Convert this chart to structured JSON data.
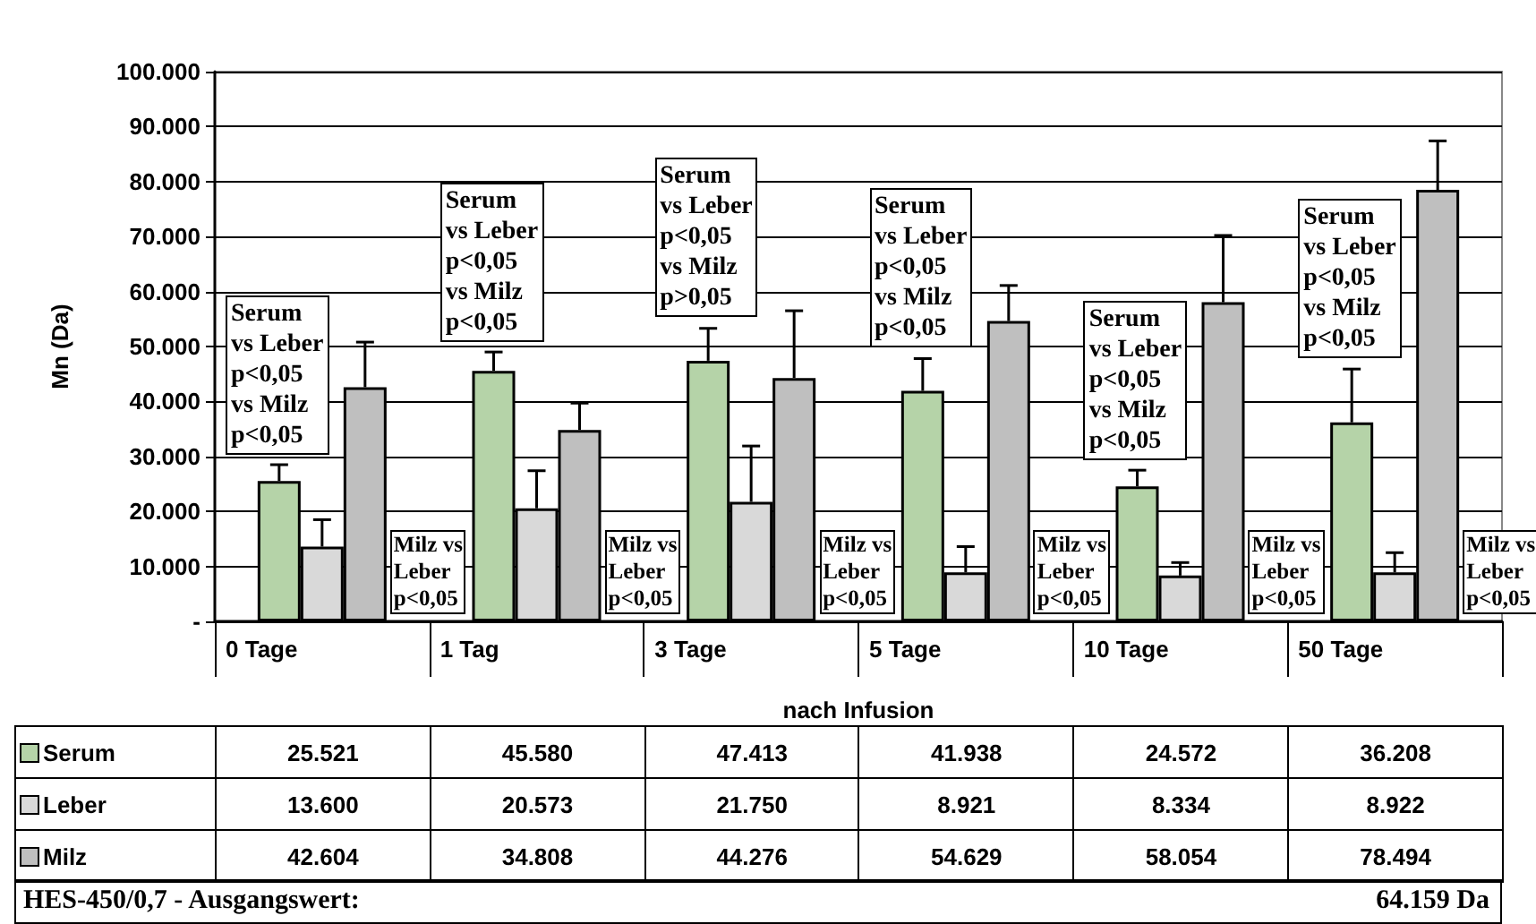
{
  "chart_data": {
    "type": "bar",
    "ylabel": "Mn (Da)",
    "xlabel": "nach Infusion",
    "categories": [
      "0 Tage",
      "1 Tag",
      "3 Tage",
      "5 Tage",
      "10 Tage",
      "50 Tage"
    ],
    "series": [
      {
        "name": "Serum",
        "color": "#b5d3a8",
        "values": [
          25521,
          45580,
          47413,
          41938,
          24572,
          36208
        ],
        "value_labels": [
          "25.521",
          "45.580",
          "47.413",
          "41.938",
          "24.572",
          "36.208"
        ],
        "errors": [
          [
            25521,
            28500
          ],
          [
            45580,
            49000
          ],
          [
            47413,
            53300
          ],
          [
            41938,
            47800
          ],
          [
            24572,
            27500
          ],
          [
            36208,
            45900
          ]
        ]
      },
      {
        "name": "Leber",
        "color": "#d9d9d9",
        "values": [
          13600,
          20573,
          21750,
          8921,
          8334,
          8922
        ],
        "value_labels": [
          "13.600",
          "20.573",
          "21.750",
          "8.921",
          "8.334",
          "8.922"
        ],
        "errors": [
          [
            13600,
            18500
          ],
          [
            20573,
            27400
          ],
          [
            21750,
            31900
          ],
          [
            8921,
            13600
          ],
          [
            8334,
            10700
          ],
          [
            8922,
            12500
          ]
        ]
      },
      {
        "name": "Milz",
        "color": "#bfbfbf",
        "values": [
          42604,
          34808,
          44276,
          54629,
          58054,
          78494
        ],
        "value_labels": [
          "42.604",
          "34.808",
          "44.276",
          "54.629",
          "58.054",
          "78.494"
        ],
        "errors": [
          [
            42604,
            50800
          ],
          [
            34808,
            39700
          ],
          [
            44276,
            56500
          ],
          [
            54629,
            61100
          ],
          [
            58054,
            70200
          ],
          [
            78494,
            87400
          ]
        ]
      }
    ],
    "ylim": [
      0,
      100000
    ],
    "yticks": [
      {
        "value": 0,
        "label": "-"
      },
      {
        "value": 10000,
        "label": "10.000"
      },
      {
        "value": 20000,
        "label": "20.000"
      },
      {
        "value": 30000,
        "label": "30.000"
      },
      {
        "value": 40000,
        "label": "40.000"
      },
      {
        "value": 50000,
        "label": "50.000"
      },
      {
        "value": 60000,
        "label": "60.000"
      },
      {
        "value": 70000,
        "label": "70.000"
      },
      {
        "value": 80000,
        "label": "80.000"
      },
      {
        "value": 90000,
        "label": "90.000"
      },
      {
        "value": 100000,
        "label": "100.000"
      }
    ],
    "grid": "y",
    "legend": "bottom left",
    "annotations": [
      "Serum\nvs Leber\np<0,05\nvs Milz\np<0,05",
      "Milz vs\nLeber\np<0,05",
      "Serum\nvs Leber\np<0,05\nvs Milz\np<0,05",
      "Milz vs\nLeber\np<0,05",
      "Serum\nvs Leber\np<0,05\nvs Milz\np>0,05",
      "Milz vs\nLeber\np<0,05",
      "Serum\nvs Leber\np<0,05\nvs Milz\np<0,05",
      "Milz vs\nLeber\np<0,05",
      "Serum\nvs Leber\np<0,05\nvs Milz\np<0,05",
      "Milz vs\nLeber\np<0,05",
      "Serum\nvs Leber\np<0,05\nvs Milz\np<0,05",
      "Milz vs\nLeber\np<0,05",
      "HES-450/0,7 - Ausgangswert:",
      "64.159 Da"
    ]
  }
}
